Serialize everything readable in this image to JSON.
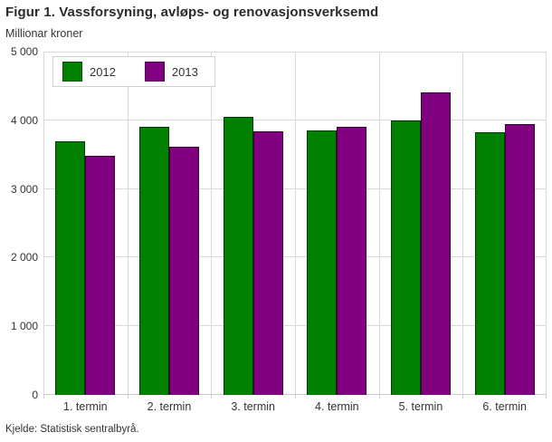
{
  "header": {
    "title": "Figur 1. Vassforsyning, avløps- og renovasjonsverksemd",
    "subtitle": "Millionar kroner"
  },
  "footer": {
    "source": "Kjelde: Statistisk sentralbyrå."
  },
  "colors": {
    "series_2012": "#008000",
    "series_2013": "#800080",
    "gridline": "#d9d9d9",
    "text": "#333333"
  },
  "chart_data": {
    "type": "bar",
    "title": "Figur 1. Vassforsyning, avløps- og renovasjonsverksemd",
    "subtitle": "Millionar kroner",
    "xlabel": "",
    "ylabel": "Millionar kroner",
    "categories": [
      "1. termin",
      "2. termin",
      "3. termin",
      "4. termin",
      "5. termin",
      "6. termin"
    ],
    "series": [
      {
        "name": "2012",
        "color": "#008000",
        "values": [
          3700,
          3900,
          4050,
          3850,
          4000,
          3820
        ]
      },
      {
        "name": "2013",
        "color": "#800080",
        "values": [
          3480,
          3620,
          3840,
          3910,
          4400,
          3940
        ]
      }
    ],
    "ylim": [
      0,
      5000
    ],
    "ytick_interval": 1000,
    "ytick_labels": [
      "0",
      "1 000",
      "2 000",
      "3 000",
      "4 000",
      "5 000"
    ],
    "grid": true,
    "legend_position": "top-left",
    "source": "Kjelde: Statistisk sentralbyrå."
  }
}
